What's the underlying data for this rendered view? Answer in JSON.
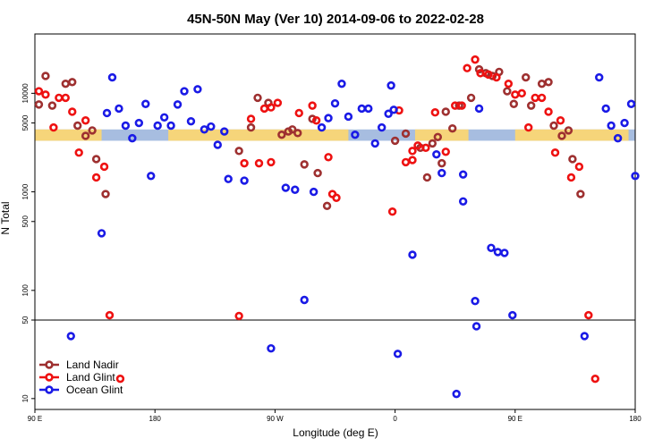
{
  "chart_data": {
    "type": "scatter",
    "title": "45N-50N May (Ver 10)   2014-09-06 to 2022-02-28",
    "xlabel": "Longitude (deg E)",
    "ylabel": "N Total",
    "xlim": [
      90,
      540
    ],
    "x_ticks": [
      {
        "value": 90,
        "label": "90 E"
      },
      {
        "value": 180,
        "label": "180"
      },
      {
        "value": 270,
        "label": "90 W"
      },
      {
        "value": 360,
        "label": "0"
      },
      {
        "value": 450,
        "label": "90 E"
      },
      {
        "value": 540,
        "label": "180"
      }
    ],
    "y_scale": "two-panel log; upper panel 50 to 40000, lower panel 8 to 50",
    "y_ticks_upper": [
      {
        "value": 50,
        "label": "50"
      },
      {
        "value": 100,
        "label": "100"
      },
      {
        "value": 500,
        "label": "500"
      },
      {
        "value": 1000,
        "label": "1000"
      },
      {
        "value": 5000,
        "label": "5000"
      },
      {
        "value": 10000,
        "label": "10000"
      }
    ],
    "y_ticks_lower": [
      {
        "value": 10,
        "label": "10"
      }
    ],
    "band": {
      "ymin": 3300,
      "ymax": 4300,
      "land_color": "#f6d57a",
      "ocean_color": "#a7bde0"
    },
    "land_segments": [
      [
        90,
        140
      ],
      [
        190,
        325
      ],
      [
        375,
        415
      ],
      [
        450,
        535
      ]
    ],
    "legend": {
      "position": "bottom-left"
    },
    "series": [
      {
        "name": "Land Nadir",
        "color": "#9e3030",
        "points": [
          [
            93,
            7700
          ],
          [
            98,
            15000
          ],
          [
            103,
            7500
          ],
          [
            113,
            12500
          ],
          [
            118,
            13000
          ],
          [
            122,
            4700
          ],
          [
            128,
            3700
          ],
          [
            133,
            4200
          ],
          [
            136,
            2150
          ],
          [
            143,
            950
          ],
          [
            243,
            2600
          ],
          [
            252,
            4500
          ],
          [
            257,
            9000
          ],
          [
            265,
            8000
          ],
          [
            275,
            3800
          ],
          [
            280,
            4100
          ],
          [
            283,
            4300
          ],
          [
            287,
            3950
          ],
          [
            292,
            1900
          ],
          [
            298,
            5500
          ],
          [
            302,
            1550
          ],
          [
            309,
            720
          ],
          [
            360,
            3300
          ],
          [
            368,
            3900
          ],
          [
            379,
            2800
          ],
          [
            384,
            1400
          ],
          [
            388,
            3100
          ],
          [
            392,
            3600
          ],
          [
            395,
            1950
          ],
          [
            398,
            6500
          ],
          [
            403,
            4400
          ],
          [
            408,
            7500
          ],
          [
            417,
            9000
          ],
          [
            423,
            17500
          ],
          [
            428,
            16000
          ],
          [
            433,
            15000
          ],
          [
            438,
            16500
          ],
          [
            444,
            10500
          ],
          [
            449,
            7800
          ],
          [
            458,
            14500
          ],
          [
            462,
            7500
          ],
          [
            470,
            12500
          ],
          [
            475,
            13000
          ],
          [
            479,
            4700
          ],
          [
            485,
            3700
          ],
          [
            490,
            4200
          ],
          [
            493,
            2150
          ],
          [
            499,
            950
          ]
        ]
      },
      {
        "name": "Land Glint",
        "color": "#ee1111",
        "points": [
          [
            93,
            10500
          ],
          [
            98,
            9700
          ],
          [
            104,
            4500
          ],
          [
            108,
            9000
          ],
          [
            113,
            9000
          ],
          [
            118,
            6500
          ],
          [
            123,
            2500
          ],
          [
            128,
            5300
          ],
          [
            136,
            1400
          ],
          [
            142,
            1800
          ],
          [
            146,
            56
          ],
          [
            154,
            15
          ],
          [
            243,
            55
          ],
          [
            247,
            1950
          ],
          [
            252,
            5500
          ],
          [
            258,
            1950
          ],
          [
            262,
            7000
          ],
          [
            267,
            7200
          ],
          [
            272,
            8000
          ],
          [
            288,
            6300
          ],
          [
            298,
            7500
          ],
          [
            301,
            5300
          ],
          [
            310,
            2250
          ],
          [
            313,
            950
          ],
          [
            316,
            870
          ],
          [
            267,
            2000
          ],
          [
            358,
            630
          ],
          [
            363,
            6700
          ],
          [
            368,
            2000
          ],
          [
            373,
            2100
          ],
          [
            373,
            2600
          ],
          [
            377,
            2950
          ],
          [
            383,
            2800
          ],
          [
            390,
            6400
          ],
          [
            398,
            2550
          ],
          [
            405,
            7500
          ],
          [
            410,
            7500
          ],
          [
            414,
            18000
          ],
          [
            420,
            22000
          ],
          [
            424,
            16000
          ],
          [
            430,
            15500
          ],
          [
            436,
            14500
          ],
          [
            445,
            12500
          ],
          [
            450,
            9700
          ],
          [
            455,
            10000
          ],
          [
            460,
            4500
          ],
          [
            465,
            9000
          ],
          [
            470,
            9000
          ],
          [
            475,
            6500
          ],
          [
            480,
            2500
          ],
          [
            484,
            5300
          ],
          [
            492,
            1400
          ],
          [
            498,
            1800
          ],
          [
            505,
            56
          ],
          [
            510,
            15
          ]
        ]
      },
      {
        "name": "Ocean Glint",
        "color": "#1a1ae6",
        "points": [
          [
            117,
            36
          ],
          [
            140,
            380
          ],
          [
            144,
            6300
          ],
          [
            148,
            14500
          ],
          [
            153,
            7000
          ],
          [
            158,
            4700
          ],
          [
            163,
            3500
          ],
          [
            168,
            5000
          ],
          [
            173,
            7800
          ],
          [
            177,
            1450
          ],
          [
            182,
            4700
          ],
          [
            187,
            5700
          ],
          [
            192,
            4700
          ],
          [
            197,
            7700
          ],
          [
            202,
            10500
          ],
          [
            207,
            5200
          ],
          [
            212,
            11000
          ],
          [
            217,
            4300
          ],
          [
            222,
            4600
          ],
          [
            227,
            3000
          ],
          [
            232,
            4100
          ],
          [
            235,
            1350
          ],
          [
            247,
            1300
          ],
          [
            267,
            28
          ],
          [
            278,
            1100
          ],
          [
            285,
            1050
          ],
          [
            292,
            80
          ],
          [
            299,
            1000
          ],
          [
            305,
            4500
          ],
          [
            310,
            5600
          ],
          [
            315,
            7900
          ],
          [
            320,
            12500
          ],
          [
            325,
            5800
          ],
          [
            330,
            3800
          ],
          [
            335,
            7000
          ],
          [
            340,
            7000
          ],
          [
            345,
            3100
          ],
          [
            350,
            4500
          ],
          [
            355,
            6200
          ],
          [
            357,
            12000
          ],
          [
            359,
            6800
          ],
          [
            362,
            25
          ],
          [
            373,
            230
          ],
          [
            391,
            2400
          ],
          [
            395,
            1550
          ],
          [
            406,
            11
          ],
          [
            411,
            800
          ],
          [
            411,
            1500
          ],
          [
            420,
            78
          ],
          [
            421,
            44
          ],
          [
            423,
            7000
          ],
          [
            432,
            270
          ],
          [
            437,
            245
          ],
          [
            442,
            240
          ],
          [
            448,
            56
          ],
          [
            502,
            36
          ],
          [
            513,
            14500
          ],
          [
            518,
            7000
          ],
          [
            522,
            4700
          ],
          [
            527,
            3500
          ],
          [
            532,
            5000
          ],
          [
            537,
            7800
          ],
          [
            540,
            1450
          ]
        ]
      }
    ]
  }
}
